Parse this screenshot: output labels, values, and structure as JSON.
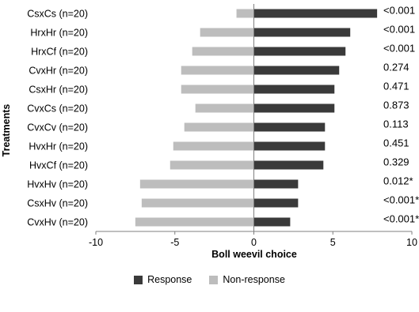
{
  "chart_data": {
    "type": "bar",
    "orientation": "horizontal",
    "stacked": "diverging",
    "title": "",
    "xlabel": "Boll weevil choice",
    "ylabel": "Treatments",
    "xlim": [
      -10,
      10
    ],
    "xticks": [
      -10,
      -5,
      0,
      5,
      10
    ],
    "categories": [
      "CsxCs (n=20)",
      "HrxHr (n=20)",
      "HrxCf (n=20)",
      "CvxHr (n=20)",
      "CsxHr (n=20)",
      "CvxCs (n=20)",
      "CvxCv (n=20)",
      "HvxHr (n=20)",
      "HvxCf (n=20)",
      "HvxHv (n=20)",
      "CsxHv (n=20)",
      "CvxHv (n=20)"
    ],
    "series": [
      {
        "name": "Response",
        "color": "#3a3a3a",
        "values": [
          7.8,
          6.1,
          5.8,
          5.4,
          5.1,
          5.1,
          4.5,
          4.5,
          4.4,
          2.8,
          2.8,
          2.3
        ]
      },
      {
        "name": "Non-response",
        "color": "#bdbdbd",
        "values": [
          -1.1,
          -3.4,
          -3.9,
          -4.6,
          -4.6,
          -3.7,
          -4.4,
          -5.1,
          -5.3,
          -7.2,
          -7.1,
          -7.5
        ]
      }
    ],
    "annotations": [
      "<0.001",
      "<0.001",
      "<0.001",
      "0.274",
      "0.471",
      "0.873",
      "0.113",
      "0.451",
      "0.329",
      "0.012*",
      "<0.001*",
      "<0.001*"
    ],
    "legend_position": "bottom",
    "grid": false
  }
}
